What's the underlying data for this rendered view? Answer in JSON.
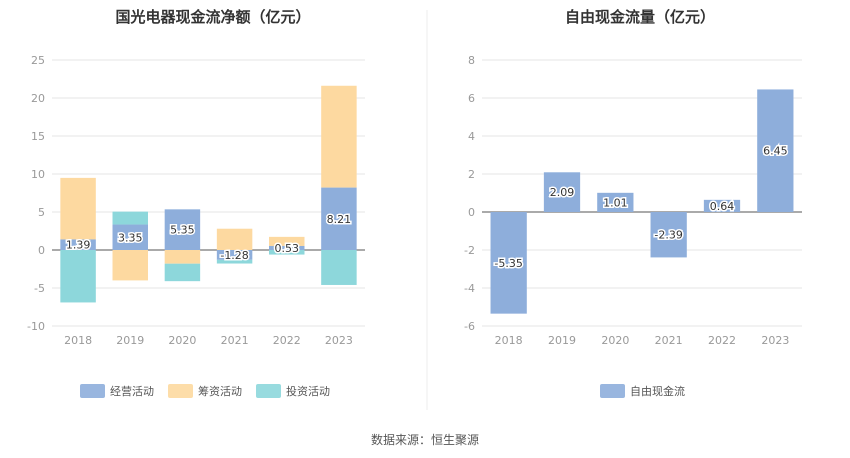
{
  "source_text": "数据来源：恒生聚源",
  "chart_data": [
    {
      "type": "bar",
      "stacked": true,
      "title": "国光电器现金流净额（亿元）",
      "categories": [
        "2018",
        "2019",
        "2020",
        "2021",
        "2022",
        "2023"
      ],
      "ylim": [
        -10,
        25
      ],
      "yticks": [
        -10,
        -5,
        0,
        5,
        10,
        15,
        20,
        25
      ],
      "grid": true,
      "legend_position": "bottom",
      "series": [
        {
          "name": "经营活动",
          "color": "#8eaedb",
          "values": [
            1.39,
            3.35,
            5.35,
            -1.28,
            0.53,
            8.21
          ],
          "labels": [
            "1.39",
            "3.35",
            "5.35",
            "-1.28",
            "0.53",
            "8.21"
          ]
        },
        {
          "name": "筹资活动",
          "color": "#fdd9a0",
          "values": [
            8.1,
            -4.0,
            -1.8,
            2.8,
            1.2,
            13.4
          ]
        },
        {
          "name": "投资活动",
          "color": "#8dd7db",
          "values": [
            -6.9,
            1.7,
            -2.3,
            -0.5,
            -0.6,
            -4.6
          ]
        }
      ]
    },
    {
      "type": "bar",
      "title": "自由现金流量（亿元）",
      "categories": [
        "2018",
        "2019",
        "2020",
        "2021",
        "2022",
        "2023"
      ],
      "ylim": [
        -6,
        8
      ],
      "yticks": [
        -6,
        -4,
        -2,
        0,
        2,
        4,
        6,
        8
      ],
      "grid": true,
      "legend_position": "bottom",
      "series": [
        {
          "name": "自由现金流",
          "color": "#8eaedb",
          "values": [
            -5.35,
            2.09,
            1.01,
            -2.39,
            0.64,
            6.45
          ],
          "labels": [
            "-5.35",
            "2.09",
            "1.01",
            "-2.39",
            "0.64",
            "6.45"
          ]
        }
      ]
    }
  ]
}
